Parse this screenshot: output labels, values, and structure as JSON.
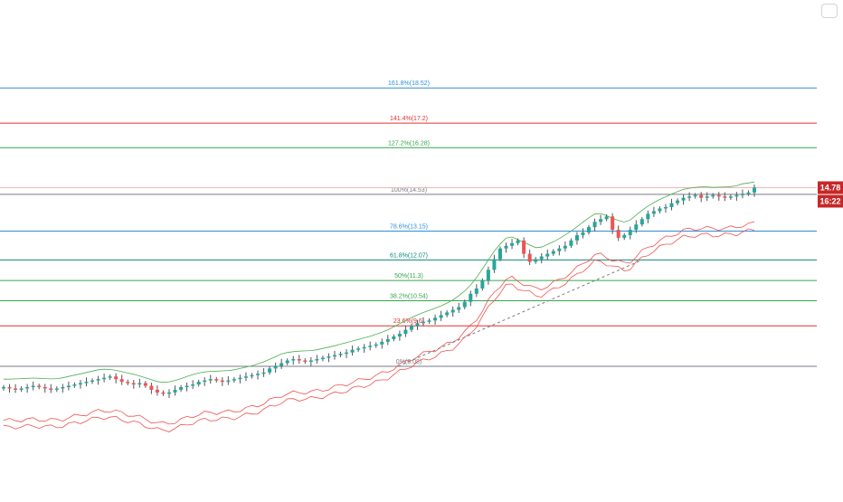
{
  "chart_data": {
    "type": "candlestick",
    "y_scale": "linear",
    "grid": false,
    "legend": "none",
    "fib_levels": [
      {
        "label": "161.8%(18.52)",
        "price": 18.52,
        "color": "#2f8fd8"
      },
      {
        "label": "141.4%(17.2)",
        "price": 17.2,
        "color": "#e03131"
      },
      {
        "label": "127.2%(16.28)",
        "price": 16.28,
        "color": "#37a64b"
      },
      {
        "label": "100%(14.53)",
        "price": 14.53,
        "color": "#787b86"
      },
      {
        "label": "78.6%(13.15)",
        "price": 13.15,
        "color": "#2f8fd8"
      },
      {
        "label": "61.8%(12.07)",
        "price": 12.07,
        "color": "#0b8a7a"
      },
      {
        "label": "50%(11.3)",
        "price": 11.3,
        "color": "#37a64b"
      },
      {
        "label": "38.2%(10.54)",
        "price": 10.54,
        "color": "#37a64b"
      },
      {
        "label": "23.6%(9.6)",
        "price": 9.6,
        "color": "#e03131"
      },
      {
        "label": "0%(8.08)",
        "price": 8.08,
        "color": "#787b86"
      }
    ],
    "current_price": {
      "value": 14.78,
      "label": "14.78",
      "color": "#c62828"
    },
    "countdown": {
      "label": "16:22",
      "color": "#c62828"
    },
    "close_series": [
      7.3,
      7.25,
      7.2,
      7.25,
      7.3,
      7.35,
      7.3,
      7.25,
      7.2,
      7.25,
      7.3,
      7.35,
      7.4,
      7.45,
      7.5,
      7.55,
      7.6,
      7.65,
      7.7,
      7.6,
      7.5,
      7.45,
      7.4,
      7.45,
      7.35,
      7.2,
      7.1,
      7.05,
      7.1,
      7.2,
      7.3,
      7.35,
      7.4,
      7.5,
      7.55,
      7.6,
      7.55,
      7.5,
      7.55,
      7.6,
      7.65,
      7.7,
      7.75,
      7.8,
      7.85,
      8.0,
      8.1,
      8.2,
      8.3,
      8.35,
      8.3,
      8.25,
      8.3,
      8.35,
      8.4,
      8.45,
      8.5,
      8.55,
      8.6,
      8.7,
      8.75,
      8.8,
      8.85,
      8.9,
      9.0,
      9.1,
      9.2,
      9.3,
      9.45,
      9.6,
      9.7,
      9.75,
      9.8,
      9.9,
      10.0,
      10.1,
      10.2,
      10.3,
      10.5,
      10.8,
      11.0,
      11.3,
      11.7,
      12.1,
      12.5,
      12.6,
      12.7,
      12.8,
      12.3,
      12.0,
      12.1,
      12.2,
      12.3,
      12.4,
      12.5,
      12.6,
      12.8,
      13.0,
      13.1,
      13.3,
      13.5,
      13.6,
      13.7,
      13.2,
      12.9,
      13.0,
      13.2,
      13.4,
      13.6,
      13.8,
      13.9,
      14.0,
      14.05,
      14.2,
      14.3,
      14.4,
      14.45,
      14.5,
      14.4,
      14.45,
      14.5,
      14.45,
      14.4,
      14.45,
      14.5,
      14.55,
      14.6,
      14.78
    ],
    "bands": {
      "upper_color": "#4caf50",
      "lower_color": "#ef5350",
      "upper_offset": 0.35,
      "lower_offsets": [
        1.2,
        1.45
      ]
    },
    "trend_guide": {
      "from": 8.08,
      "to": 12.07,
      "color": "#787b86",
      "style": "dashed"
    }
  },
  "colors": {
    "up": "#26a69a",
    "down": "#ef5350",
    "wick": "#555555"
  }
}
